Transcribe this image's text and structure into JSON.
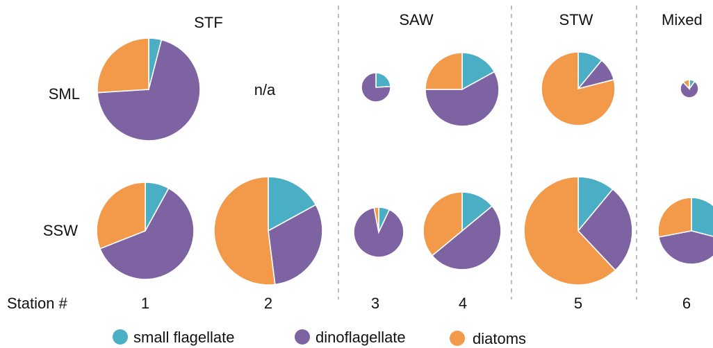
{
  "chart_data": {
    "type": "pie",
    "column_groups": [
      "STF",
      "SAW",
      "STW",
      "Mixed"
    ],
    "row_labels": [
      "SML",
      "SSW"
    ],
    "station_axis_label": "Station #",
    "stations": [
      "1",
      "2",
      "3",
      "4",
      "5",
      "6"
    ],
    "na_label": "n/a",
    "legend": [
      {
        "name": "small flagellate",
        "color": "#4aaec4"
      },
      {
        "name": "dinoflagellate",
        "color": "#7e63a3"
      },
      {
        "name": "diatoms",
        "color": "#f39a4a"
      }
    ],
    "pies": [
      {
        "row": "SML",
        "station": "1",
        "fractions": [
          0.04,
          0.7,
          0.26
        ]
      },
      {
        "row": "SML",
        "station": "3",
        "fractions": [
          0.24,
          0.76,
          0.0
        ]
      },
      {
        "row": "SML",
        "station": "4",
        "fractions": [
          0.17,
          0.58,
          0.25
        ]
      },
      {
        "row": "SML",
        "station": "5",
        "fractions": [
          0.11,
          0.1,
          0.79
        ]
      },
      {
        "row": "SML",
        "station": "6",
        "fractions": [
          0.1,
          0.78,
          0.12
        ]
      },
      {
        "row": "SSW",
        "station": "1",
        "fractions": [
          0.08,
          0.61,
          0.31
        ]
      },
      {
        "row": "SSW",
        "station": "2",
        "fractions": [
          0.17,
          0.31,
          0.52
        ]
      },
      {
        "row": "SSW",
        "station": "3",
        "fractions": [
          0.07,
          0.9,
          0.03
        ]
      },
      {
        "row": "SSW",
        "station": "4",
        "fractions": [
          0.14,
          0.5,
          0.36
        ]
      },
      {
        "row": "SSW",
        "station": "5",
        "fractions": [
          0.11,
          0.27,
          0.62
        ]
      },
      {
        "row": "SSW",
        "station": "6",
        "fractions": [
          0.29,
          0.43,
          0.28
        ]
      }
    ]
  }
}
